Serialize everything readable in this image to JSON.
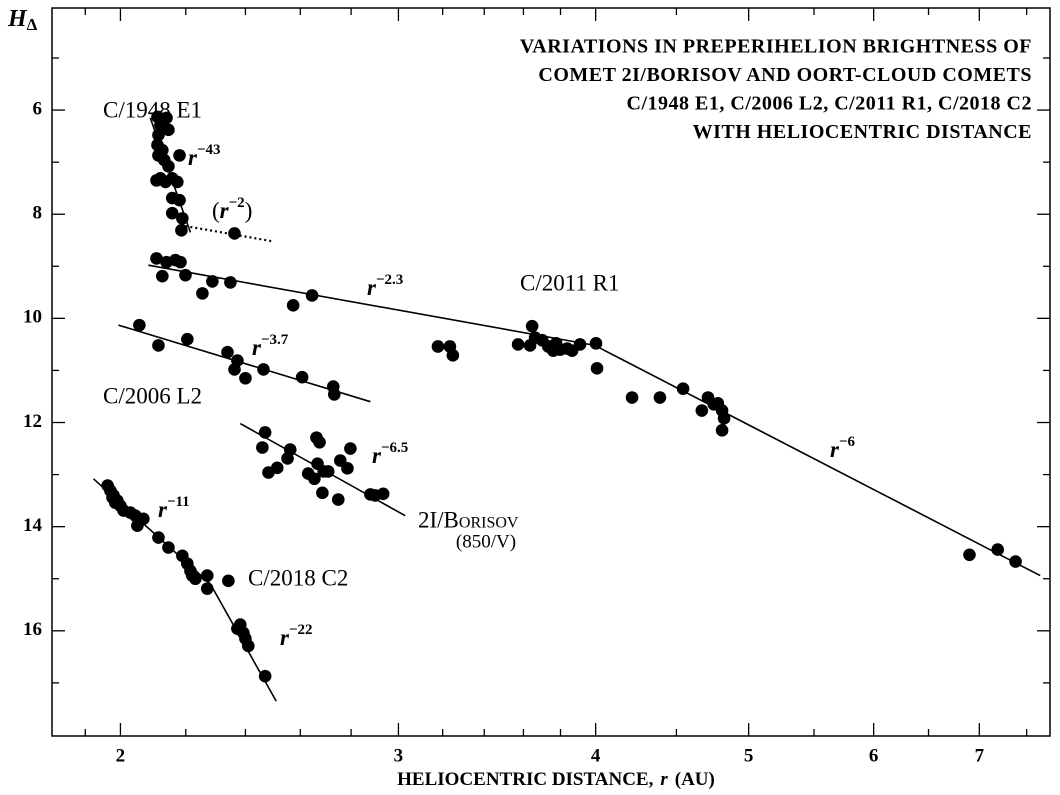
{
  "chart_data": {
    "type": "scatter",
    "title": [
      "VARIATIONS IN PREPERIHELION BRIGHTNESS OF",
      "COMET 2I/BORISOV AND OORT-CLOUD COMETS",
      "C/1948 E1, C/2006 L2, C/2011 R1, C/2018 C2",
      "WITH HELIOCENTRIC DISTANCE"
    ],
    "xlabel": {
      "text": "HELIOCENTRIC DISTANCE,",
      "var": "r",
      "unit": "(AU)"
    },
    "ylabel": {
      "base": "H",
      "sub": "Δ"
    },
    "xlog": true,
    "xlim": [
      1.81,
      7.76
    ],
    "xticks": [
      2,
      3,
      4,
      5,
      6,
      7
    ],
    "xminorticks": [
      1.9,
      2.2,
      2.4,
      2.6,
      2.8,
      3.2,
      3.4,
      3.6,
      3.8,
      4.5,
      5.5,
      6.5,
      7.5
    ],
    "ylim": [
      4.04,
      18.02
    ],
    "y_inverted": true,
    "yticks": [
      6,
      8,
      10,
      12,
      14,
      16
    ],
    "yminorticks": [
      5,
      7,
      9,
      11,
      13,
      15,
      17
    ],
    "series": [
      {
        "name": "C/1948 E1",
        "color": "#000000",
        "x": [
          2.111,
          2.12,
          2.114,
          2.111,
          2.126,
          2.139,
          2.145,
          2.132,
          2.114,
          2.108,
          2.12,
          2.136,
          2.157,
          2.173,
          2.18,
          2.145,
          2.157,
          2.18,
          2.157,
          2.189,
          2.186,
          2.362
        ],
        "values": [
          6.13,
          6.29,
          6.48,
          6.67,
          6.77,
          6.15,
          6.38,
          6.96,
          6.87,
          7.35,
          7.31,
          7.38,
          7.31,
          7.38,
          6.87,
          7.08,
          7.69,
          7.73,
          7.98,
          8.08,
          8.31,
          8.37
        ]
      },
      {
        "name": "C/2011 R1",
        "color": "#000000",
        "x": [
          2.108,
          2.139,
          2.167,
          2.183,
          2.126,
          2.199,
          2.254,
          2.287,
          2.348,
          2.573,
          2.645,
          3.178,
          3.234,
          3.248,
          3.572,
          3.646,
          3.662,
          3.635,
          3.7,
          3.733,
          3.76,
          3.776,
          3.798,
          3.837,
          3.865,
          3.91,
          4.002,
          4.008,
          4.218,
          4.393,
          4.544,
          4.67,
          4.712,
          4.752,
          4.78,
          4.81,
          4.824,
          4.81,
          6.9,
          7.19,
          7.38
        ],
        "values": [
          8.85,
          8.92,
          8.88,
          8.92,
          9.19,
          9.17,
          9.52,
          9.29,
          9.31,
          9.75,
          9.56,
          10.54,
          10.54,
          10.71,
          10.5,
          10.15,
          10.37,
          10.52,
          10.42,
          10.54,
          10.62,
          10.48,
          10.6,
          10.58,
          10.62,
          10.5,
          10.48,
          10.96,
          11.52,
          11.52,
          11.35,
          11.77,
          11.52,
          11.65,
          11.63,
          11.77,
          11.92,
          12.15,
          14.54,
          14.44,
          14.67
        ]
      },
      {
        "name": "C/2006 L2",
        "color": "#000000",
        "x": [
          2.056,
          2.114,
          2.205,
          2.338,
          2.372,
          2.362,
          2.4,
          2.464,
          2.607,
          2.728,
          2.732
        ],
        "values": [
          10.13,
          10.52,
          10.4,
          10.65,
          10.81,
          10.98,
          11.15,
          10.98,
          11.13,
          11.31,
          11.46
        ]
      },
      {
        "name": "2I/Borisov",
        "note": "(850/V)",
        "color": "#000000",
        "x": [
          2.47,
          2.46,
          2.482,
          2.514,
          2.552,
          2.562,
          2.662,
          2.674,
          2.666,
          2.69,
          2.63,
          2.654,
          2.685,
          2.708,
          2.756,
          2.785,
          2.797,
          2.748,
          2.88,
          2.9,
          2.934
        ],
        "values": [
          12.19,
          12.48,
          12.96,
          12.87,
          12.69,
          12.52,
          12.29,
          12.38,
          12.79,
          12.94,
          12.98,
          13.08,
          13.35,
          12.94,
          12.73,
          12.88,
          12.5,
          13.48,
          13.38,
          13.4,
          13.37
        ]
      },
      {
        "name": "C/2018 C2",
        "color": "#000000",
        "x": [
          1.963,
          1.971,
          1.977,
          1.985,
          1.98,
          1.991,
          2.0,
          2.009,
          2.029,
          2.044,
          2.059,
          2.05,
          2.068,
          2.114,
          2.145,
          2.189,
          2.205,
          2.215,
          2.221,
          2.231,
          2.27,
          2.27,
          2.341,
          2.372,
          2.382,
          2.393,
          2.4,
          2.41,
          2.47
        ],
        "values": [
          13.21,
          13.31,
          13.44,
          13.54,
          13.4,
          13.5,
          13.6,
          13.69,
          13.73,
          13.79,
          13.88,
          13.98,
          13.85,
          14.21,
          14.4,
          14.56,
          14.71,
          14.85,
          14.94,
          15.0,
          14.94,
          15.19,
          15.04,
          15.96,
          15.88,
          16.04,
          16.15,
          16.29,
          16.87
        ]
      }
    ],
    "fits": [
      {
        "x": [
          2.089,
          2.215
        ],
        "values": [
          6.15,
          8.35
        ],
        "style": "solid",
        "base": "r",
        "exponent": "−43"
      },
      {
        "x": [
          2.183,
          2.497
        ],
        "values": [
          8.21,
          8.52
        ],
        "style": "dotted",
        "open": "(",
        "base": "r",
        "exponent": "−2",
        "close": ")"
      },
      {
        "x": [
          2.083,
          3.995
        ],
        "values": [
          8.98,
          10.52
        ],
        "style": "solid",
        "base": "r",
        "exponent": "−2.3"
      },
      {
        "x": [
          3.995,
          7.65
        ],
        "values": [
          10.52,
          14.94
        ],
        "style": "solid",
        "base": "r",
        "exponent": "−6"
      },
      {
        "x": [
          1.994,
          2.88
        ],
        "values": [
          10.13,
          11.6
        ],
        "style": "solid",
        "base": "r",
        "exponent": "−3.7"
      },
      {
        "x": [
          2.382,
          3.03
        ],
        "values": [
          12.02,
          13.79
        ],
        "style": "solid",
        "base": "r",
        "exponent": "−6.5"
      },
      {
        "x": [
          1.923,
          2.28
        ],
        "values": [
          13.08,
          15.1
        ],
        "style": "solid",
        "base": "r",
        "exponent": "−11"
      },
      {
        "x": [
          2.28,
          2.51
        ],
        "values": [
          15.1,
          17.35
        ],
        "style": "solid",
        "base": "r",
        "exponent": "−22"
      }
    ]
  }
}
